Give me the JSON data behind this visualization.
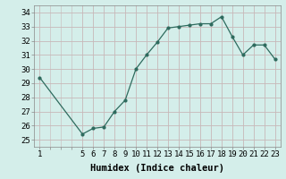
{
  "x": [
    1,
    5,
    6,
    7,
    8,
    9,
    10,
    11,
    12,
    13,
    14,
    15,
    16,
    17,
    18,
    19,
    20,
    21,
    22,
    23
  ],
  "y": [
    29.4,
    25.4,
    25.8,
    25.9,
    27.0,
    27.8,
    30.0,
    31.0,
    31.9,
    32.9,
    33.0,
    33.1,
    33.2,
    33.2,
    33.7,
    32.3,
    31.0,
    31.7,
    31.7,
    30.7
  ],
  "line_color": "#2e6b5e",
  "marker": ".",
  "marker_size": 4,
  "bg_color": "#d4eeea",
  "grid_color": "#c8b8b8",
  "xlabel": "Humidex (Indice chaleur)",
  "xlim": [
    0.5,
    23.5
  ],
  "ylim": [
    24.5,
    34.5
  ],
  "yticks": [
    25,
    26,
    27,
    28,
    29,
    30,
    31,
    32,
    33,
    34
  ],
  "xticks": [
    1,
    5,
    6,
    7,
    8,
    9,
    10,
    11,
    12,
    13,
    14,
    15,
    16,
    17,
    18,
    19,
    20,
    21,
    22,
    23
  ],
  "tick_fontsize": 6.5,
  "xlabel_fontsize": 7.5,
  "xlabel_fontweight": "bold"
}
